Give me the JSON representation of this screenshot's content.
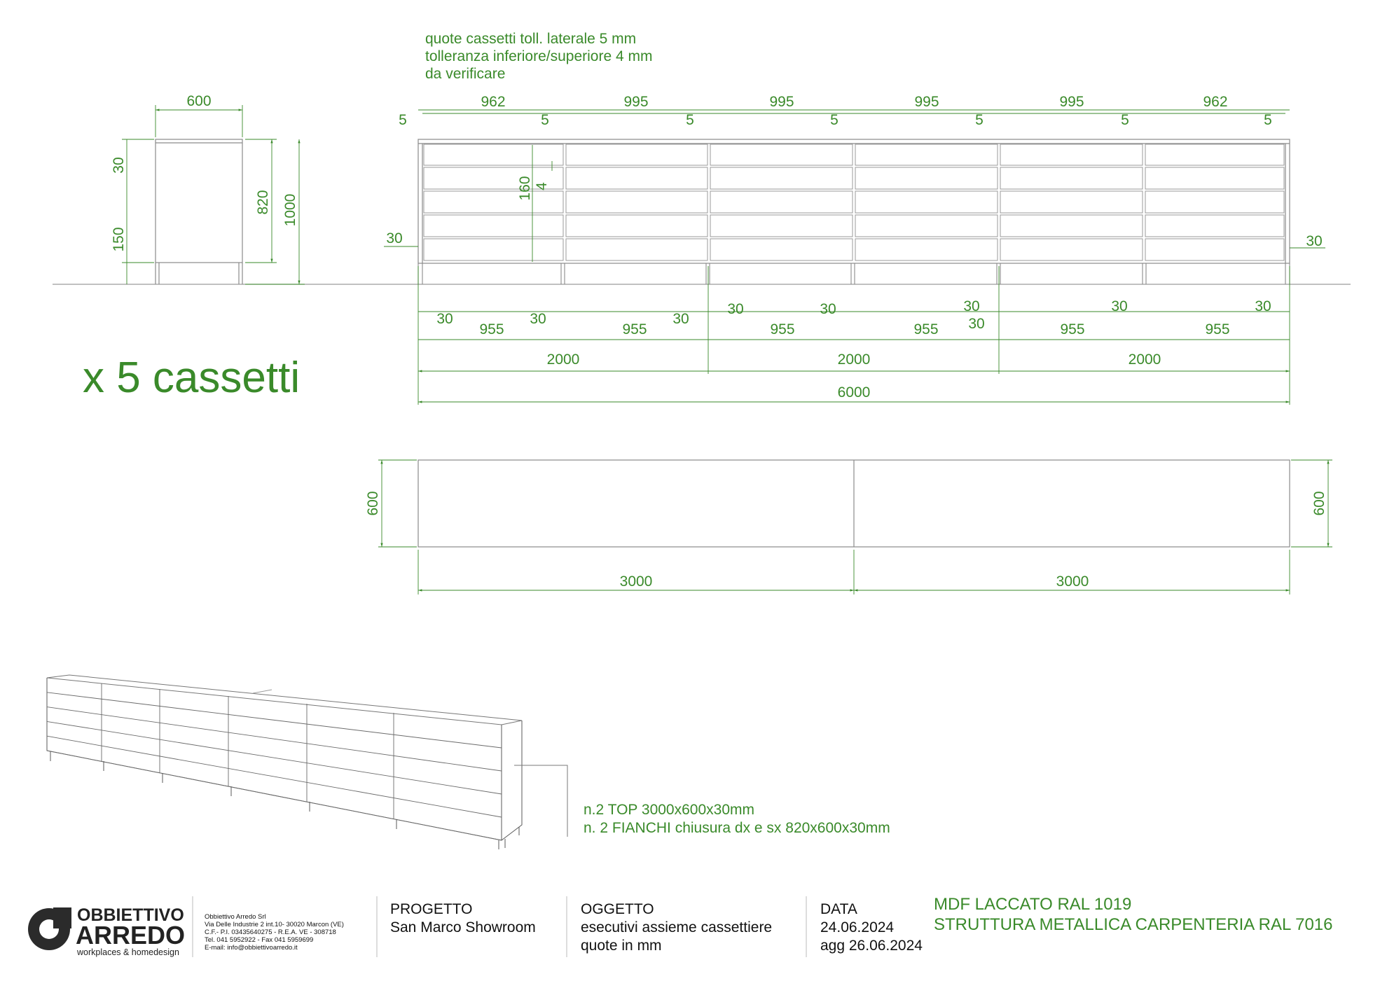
{
  "notes": {
    "tolerance_lines": [
      "quote cassetti toll. laterale 5 mm",
      "tolleranza inferiore/superiore 4 mm",
      "da verificare"
    ],
    "drawer_count": "x 5 cassetti",
    "materials_lines": [
      "n.2 TOP 3000x600x30mm",
      "n. 2 FIANCHI chiusura dx e sx 820x600x30mm"
    ]
  },
  "side_view": {
    "width": "600",
    "top_thickness": "30",
    "leg_height": "150",
    "carcass_height": "820",
    "total_height": "1000"
  },
  "front_view": {
    "drawer_fronts": [
      "962",
      "995",
      "995",
      "995",
      "995",
      "962"
    ],
    "gap": "5",
    "drawer_height": "160",
    "drawer_gap": "4",
    "top_left": "30",
    "top_right": "30",
    "side_thickness": "30",
    "frame_bays": [
      "955",
      "955",
      "955",
      "955",
      "955",
      "955"
    ],
    "modules": [
      "2000",
      "2000",
      "2000"
    ],
    "total": "6000"
  },
  "plan_view": {
    "depth_left": "600",
    "depth_right": "600",
    "tops": [
      "3000",
      "3000"
    ]
  },
  "title_block": {
    "company": {
      "logo_line1": "OBBIETTIVO",
      "logo_line2": "ARREDO",
      "logo_tagline": "workplaces & homedesign",
      "address_lines": [
        "Obbiettivo Arredo Srl",
        "Via Delle Industrie 2 int.10- 30020 Marcon (VE)",
        "C.F.- P.I. 03435640275  - R.E.A. VE - 308718",
        "Tel. 041 5952922 - Fax 041 5959699",
        "E-mail: info@obbiettivoarredo.it"
      ]
    },
    "progetto_label": "PROGETTO",
    "progetto_value": "San Marco Showroom",
    "oggetto_label": "OGGETTO",
    "oggetto_value_1": "esecutivi assieme cassettiere",
    "oggetto_value_2": "quote in mm",
    "data_label": "DATA",
    "data_value": "24.06.2024",
    "data_update": "agg 26.06.2024",
    "material_1": "MDF LACCATO RAL 1019",
    "material_2": "STRUTTURA METALLICA CARPENTERIA RAL 7016"
  },
  "colors": {
    "dimension": "#3a8a2a",
    "lines": "#8a8a8a",
    "text": "#111111"
  }
}
